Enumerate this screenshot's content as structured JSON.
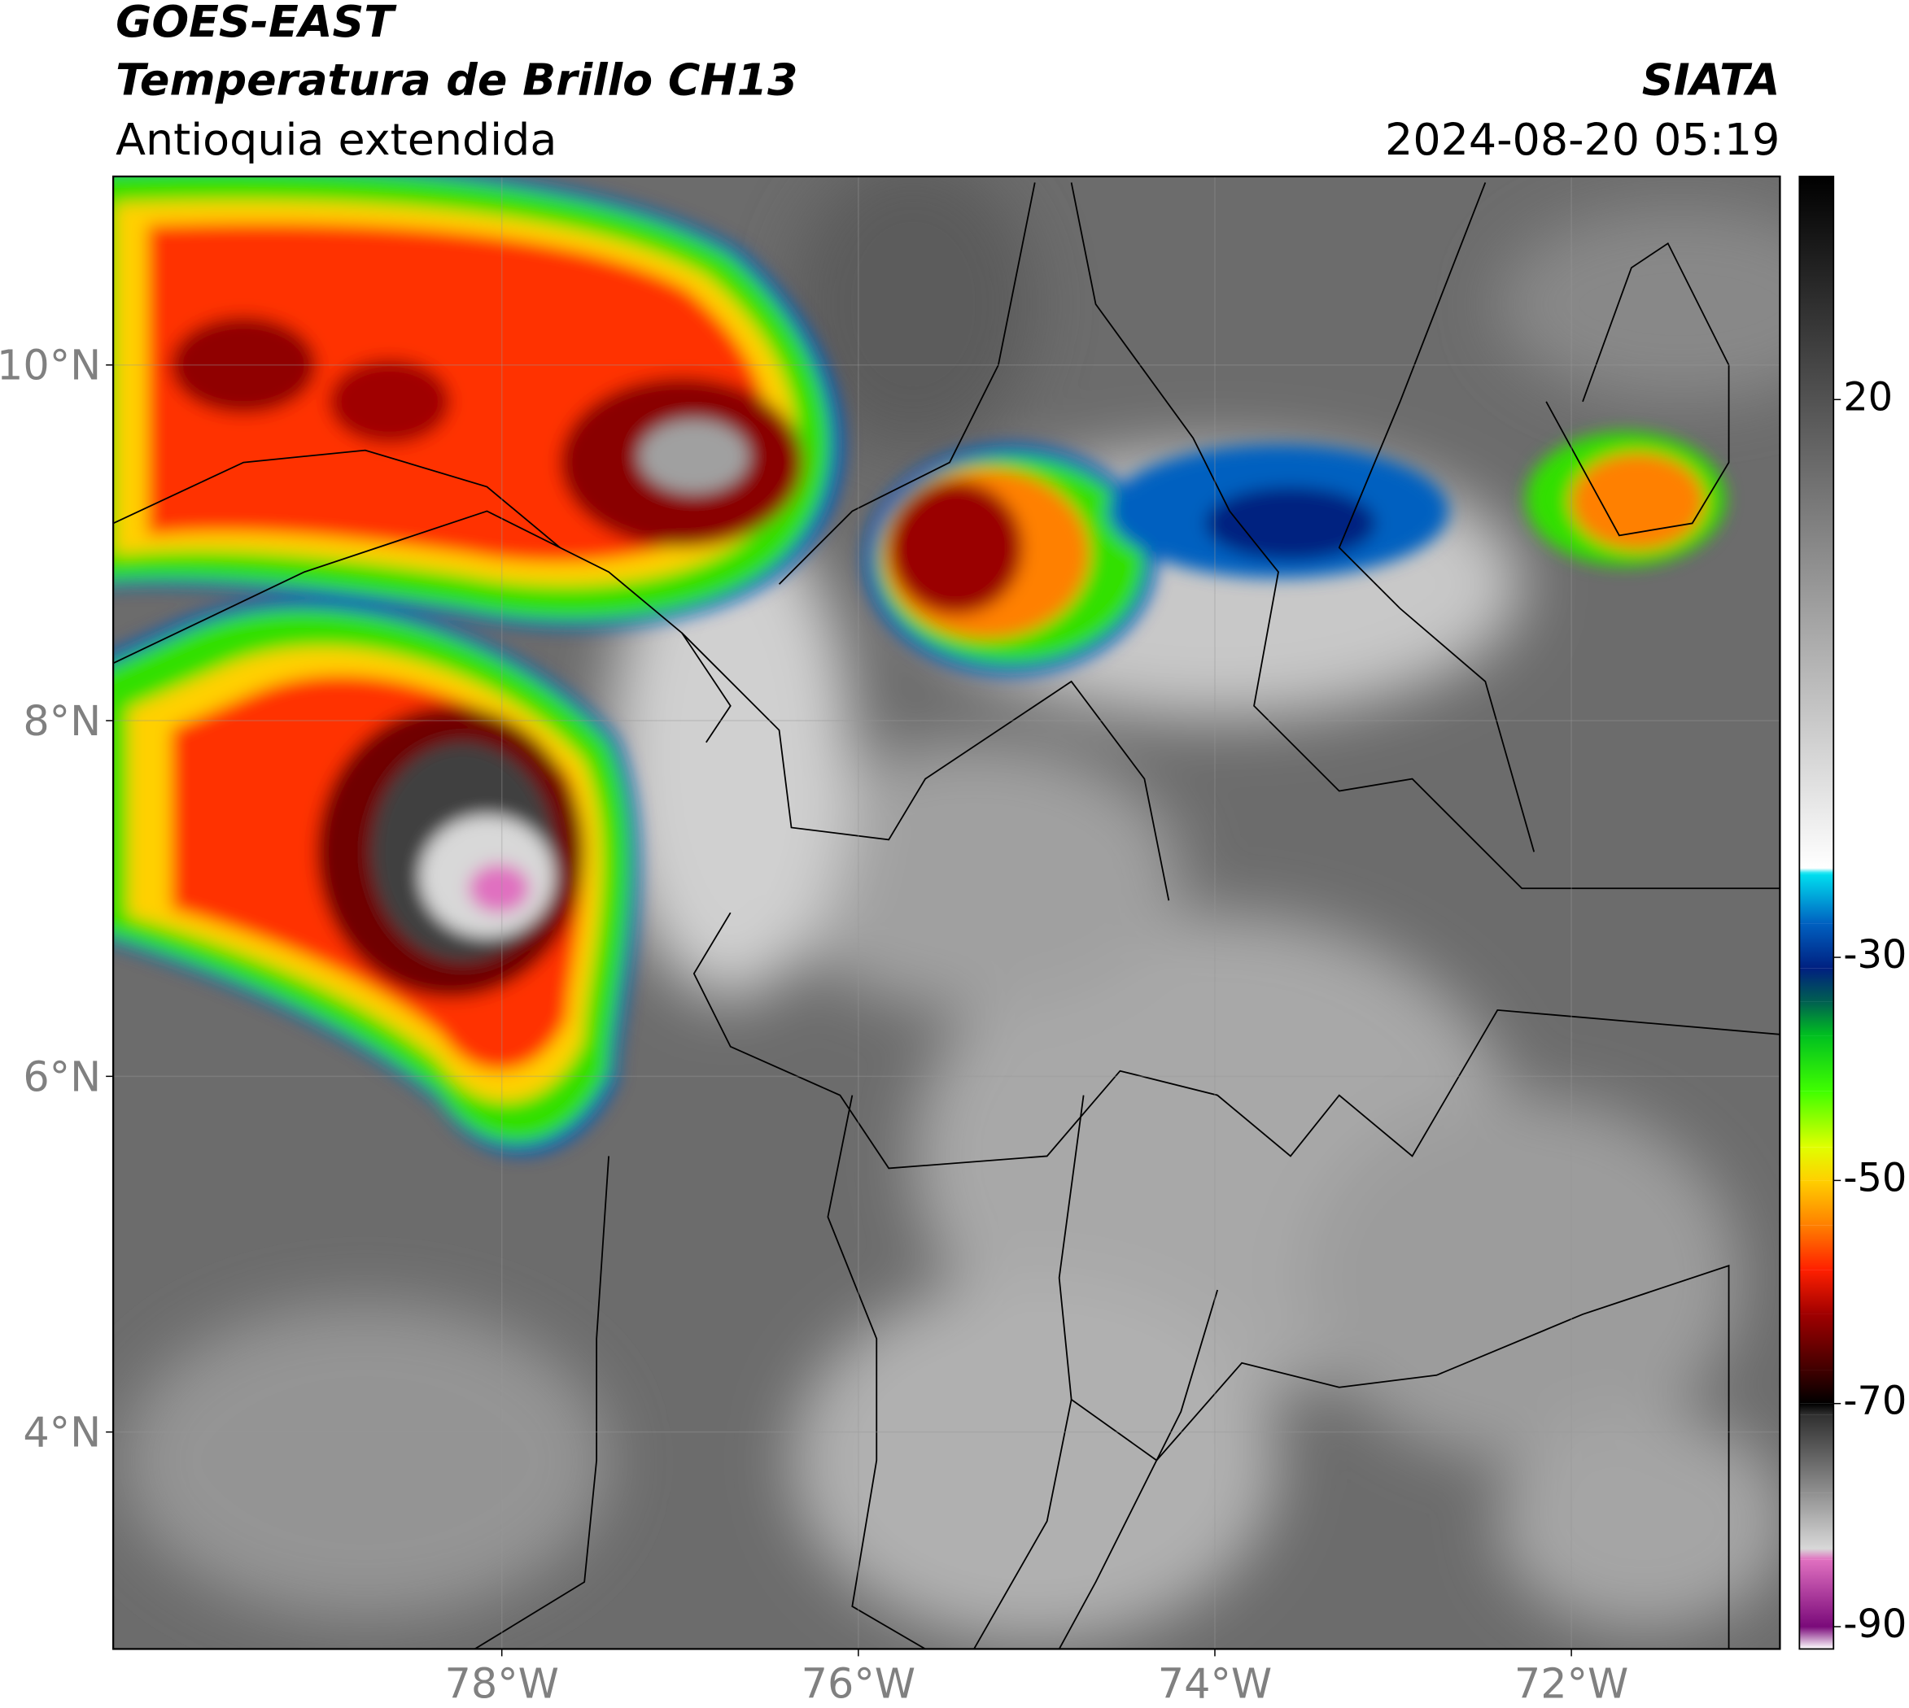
{
  "header": {
    "title": "GOES-EAST",
    "subtitle": "Temperatura de Brillo CH13",
    "region": "Antioquia extendida",
    "source": "SIATA",
    "timestamp": "2024-08-20 05:19"
  },
  "map": {
    "xlim": [
      -80.18,
      -70.83
    ],
    "ylim": [
      2.78,
      11.06
    ],
    "xticks": [
      {
        "value": -78,
        "label": "78°W"
      },
      {
        "value": -76,
        "label": "76°W"
      },
      {
        "value": -74,
        "label": "74°W"
      },
      {
        "value": -72,
        "label": "72°W"
      }
    ],
    "yticks": [
      {
        "value": 4,
        "label": "4°N"
      },
      {
        "value": 6,
        "label": "6°N"
      },
      {
        "value": 8,
        "label": "8°N"
      },
      {
        "value": 10,
        "label": "10°N"
      }
    ]
  },
  "colorbar": {
    "lim": [
      -92,
      40
    ],
    "ticks": [
      20,
      -30,
      -50,
      -70,
      -90
    ],
    "colormap": [
      {
        "value": -92,
        "color": "#ffffff"
      },
      {
        "value": -90,
        "color": "#7a0a7a"
      },
      {
        "value": -84,
        "color": "#e070c0"
      },
      {
        "value": -83,
        "color": "#d8d8d8"
      },
      {
        "value": -78,
        "color": "#909090"
      },
      {
        "value": -71,
        "color": "#303030"
      },
      {
        "value": -70,
        "color": "#000000"
      },
      {
        "value": -67,
        "color": "#400000"
      },
      {
        "value": -62,
        "color": "#a00000"
      },
      {
        "value": -58,
        "color": "#ff2000"
      },
      {
        "value": -54,
        "color": "#ff8000"
      },
      {
        "value": -50,
        "color": "#ffd000"
      },
      {
        "value": -47,
        "color": "#e0ff00"
      },
      {
        "value": -42,
        "color": "#40ff00"
      },
      {
        "value": -37,
        "color": "#00c020"
      },
      {
        "value": -34,
        "color": "#006050"
      },
      {
        "value": -31,
        "color": "#002080"
      },
      {
        "value": -27,
        "color": "#0060c0"
      },
      {
        "value": -22.5,
        "color": "#00e0f0"
      },
      {
        "value": -22,
        "color": "#ffffff"
      },
      {
        "value": 40,
        "color": "#000000"
      }
    ]
  }
}
